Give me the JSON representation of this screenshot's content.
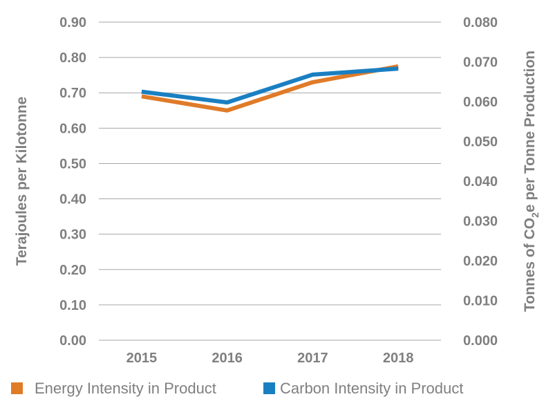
{
  "chart_data": {
    "type": "line",
    "categories": [
      "2015",
      "2016",
      "2017",
      "2018"
    ],
    "series": [
      {
        "name": "Energy Intensity in Product",
        "axis": "left",
        "color": "#e07b28",
        "values": [
          0.69,
          0.65,
          0.73,
          0.775
        ]
      },
      {
        "name": "Carbon Intensity in Product",
        "axis": "right",
        "color": "#1a7fc1",
        "values": [
          0.0625,
          0.0598,
          0.0668,
          0.0683
        ]
      }
    ],
    "y_left": {
      "label": "Terajoules per Kilotonne",
      "ylim": [
        0,
        0.9
      ],
      "ticks": [
        "0.00",
        "0.10",
        "0.20",
        "0.30",
        "0.40",
        "0.50",
        "0.60",
        "0.70",
        "0.80",
        "0.90"
      ]
    },
    "y_right": {
      "label_prefix": "Tonnes of CO",
      "label_sub": "2",
      "label_suffix": "e per Tonne Production",
      "ylim": [
        0,
        0.08
      ],
      "ticks": [
        "0.000",
        "0.010",
        "0.020",
        "0.030",
        "0.040",
        "0.050",
        "0.060",
        "0.070",
        "0.080"
      ]
    },
    "grid": true,
    "legend_position": "bottom"
  }
}
